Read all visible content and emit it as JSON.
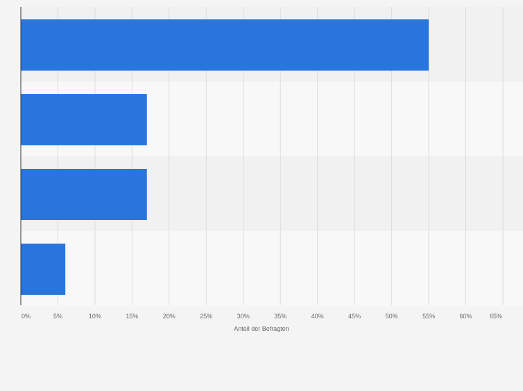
{
  "colors": {
    "background": "#f4f4f4",
    "band_dark": "#f1f1f1",
    "band_light": "#f8f8f8",
    "bar": "#2876dd",
    "grid": "#dcdcdc",
    "axis": "#333333",
    "tick_text": "#666666"
  },
  "chart_data": {
    "type": "bar",
    "orientation": "horizontal",
    "categories": [
      "",
      "",
      "",
      ""
    ],
    "values": [
      55,
      17,
      17,
      6
    ],
    "xlabel": "Anteil der Befragten",
    "ylabel": "",
    "xlim": [
      0,
      65
    ],
    "tick_values": [
      0,
      5,
      10,
      15,
      20,
      25,
      30,
      35,
      40,
      45,
      50,
      55,
      60,
      65
    ],
    "tick_labels": [
      "0%",
      "5%",
      "10%",
      "15%",
      "20%",
      "25%",
      "30%",
      "35%",
      "40%",
      "45%",
      "50%",
      "55%",
      "60%",
      "65%"
    ],
    "grid": true,
    "legend": "none"
  }
}
